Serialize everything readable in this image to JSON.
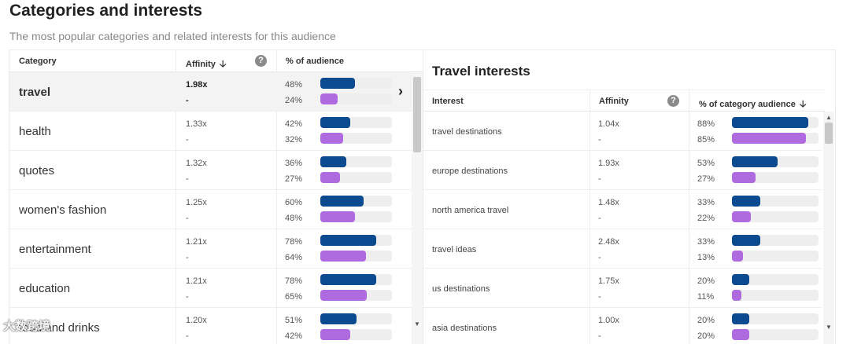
{
  "header": {
    "title": "Categories and interests",
    "subtitle": "The most popular categories and related interests for this audience"
  },
  "colors": {
    "primary_bar": "#0c4a8f",
    "secondary_bar": "#b06ae0",
    "track": "#eeeeee"
  },
  "categories_table": {
    "columns": {
      "category": "Category",
      "affinity": "Affinity",
      "percent": "% of audience"
    },
    "rows": [
      {
        "name": "travel",
        "affinity": "1.98x",
        "dash": "-",
        "pct1": "48%",
        "pct2": "24%",
        "v1": 48,
        "v2": 24,
        "selected": true
      },
      {
        "name": "health",
        "affinity": "1.33x",
        "dash": "-",
        "pct1": "42%",
        "pct2": "32%",
        "v1": 42,
        "v2": 32
      },
      {
        "name": "quotes",
        "affinity": "1.32x",
        "dash": "-",
        "pct1": "36%",
        "pct2": "27%",
        "v1": 36,
        "v2": 27
      },
      {
        "name": "women's fashion",
        "affinity": "1.25x",
        "dash": "-",
        "pct1": "60%",
        "pct2": "48%",
        "v1": 60,
        "v2": 48
      },
      {
        "name": "entertainment",
        "affinity": "1.21x",
        "dash": "-",
        "pct1": "78%",
        "pct2": "64%",
        "v1": 78,
        "v2": 64
      },
      {
        "name": "education",
        "affinity": "1.21x",
        "dash": "-",
        "pct1": "78%",
        "pct2": "65%",
        "v1": 78,
        "v2": 65
      },
      {
        "name": "food and drinks",
        "affinity": "1.20x",
        "dash": "-",
        "pct1": "51%",
        "pct2": "42%",
        "v1": 51,
        "v2": 42
      }
    ]
  },
  "interests_panel": {
    "title": "Travel interests",
    "columns": {
      "interest": "Interest",
      "affinity": "Affinity",
      "percent": "% of category audience"
    },
    "rows": [
      {
        "name": "travel destinations",
        "affinity": "1.04x",
        "dash": "-",
        "pct1": "88%",
        "pct2": "85%",
        "v1": 88,
        "v2": 85
      },
      {
        "name": "europe destinations",
        "affinity": "1.93x",
        "dash": "-",
        "pct1": "53%",
        "pct2": "27%",
        "v1": 53,
        "v2": 27
      },
      {
        "name": "north america travel",
        "affinity": "1.48x",
        "dash": "-",
        "pct1": "33%",
        "pct2": "22%",
        "v1": 33,
        "v2": 22
      },
      {
        "name": "travel ideas",
        "affinity": "2.48x",
        "dash": "-",
        "pct1": "33%",
        "pct2": "13%",
        "v1": 33,
        "v2": 13
      },
      {
        "name": "us destinations",
        "affinity": "1.75x",
        "dash": "-",
        "pct1": "20%",
        "pct2": "11%",
        "v1": 20,
        "v2": 11
      },
      {
        "name": "asia destinations",
        "affinity": "1.00x",
        "dash": "-",
        "pct1": "20%",
        "pct2": "20%",
        "v1": 20,
        "v2": 20
      }
    ]
  },
  "icons": {
    "help": "help-icon",
    "sort": "arrow-down-icon",
    "expand": "chevron-right-icon"
  },
  "watermark": "大数跨境"
}
